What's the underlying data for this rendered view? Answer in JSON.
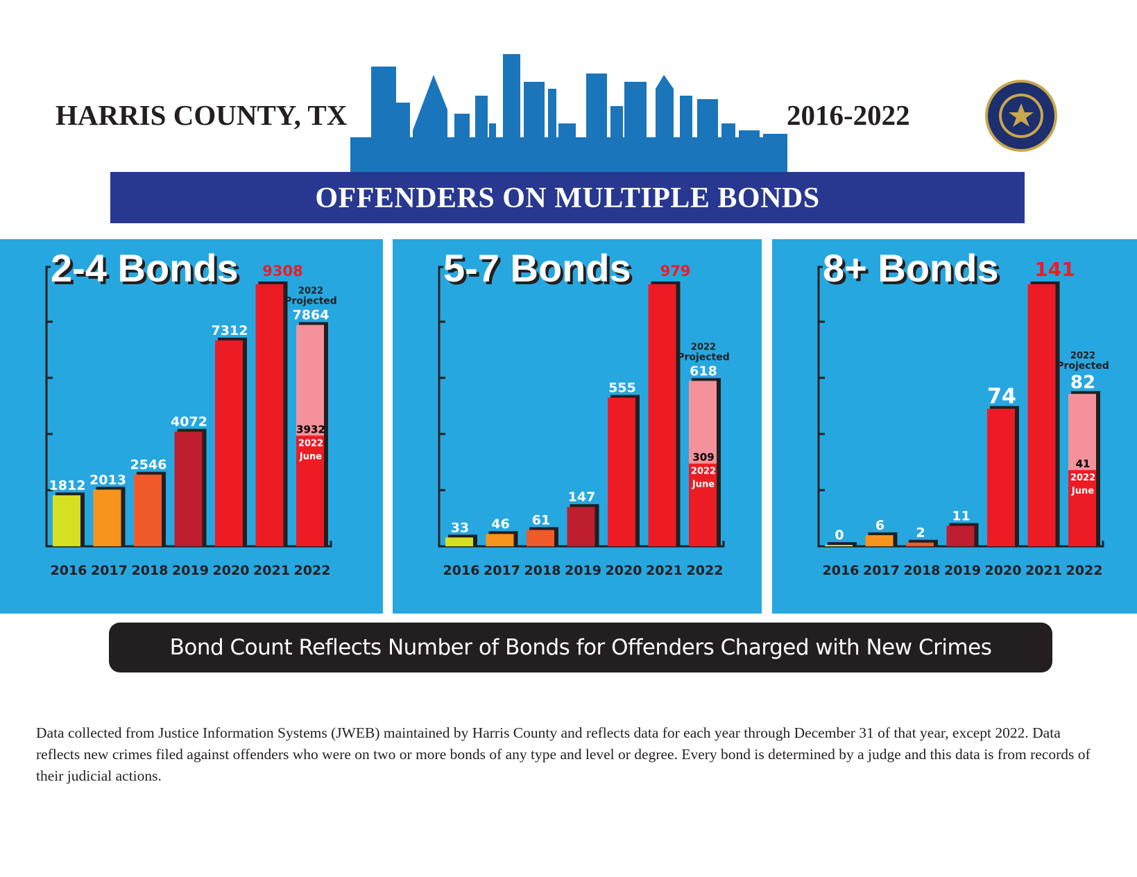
{
  "header": {
    "location": "HARRIS COUNTY, TX",
    "years": "2016-2022",
    "banner": "OFFENDERS ON MULTIPLE BONDS",
    "seal_text": "DISTRICT ATTORNEY HARRIS COUNTY, TEXAS"
  },
  "colors": {
    "2016": "#d7df23",
    "2017": "#f7941d",
    "2018": "#f15a29",
    "2019": "#be1e2d",
    "2020": "#ed1c24",
    "2021": "#ed1c24",
    "2022": "#ed1c24",
    "projected": "#f4919a",
    "panel": "#27a7e0",
    "banner": "#283891"
  },
  "chart_data": [
    {
      "type": "bar",
      "title": "2-4 Bonds",
      "categories": [
        "2016",
        "2017",
        "2018",
        "2019",
        "2020",
        "2021",
        "2022"
      ],
      "values": [
        1812,
        2013,
        2546,
        4072,
        7312,
        9308,
        3932
      ],
      "projected_2022": 7864,
      "projected_label": [
        "2022",
        "Projected"
      ],
      "june_label": [
        "2022",
        "June"
      ],
      "ylim": [
        0,
        9308
      ]
    },
    {
      "type": "bar",
      "title": "5-7 Bonds",
      "categories": [
        "2016",
        "2017",
        "2018",
        "2019",
        "2020",
        "2021",
        "2022"
      ],
      "values": [
        33,
        46,
        61,
        147,
        555,
        979,
        309
      ],
      "projected_2022": 618,
      "projected_label": [
        "2022",
        "Projected"
      ],
      "june_label": [
        "2022",
        "June"
      ],
      "ylim": [
        0,
        979
      ]
    },
    {
      "type": "bar",
      "title": "8+ Bonds",
      "categories": [
        "2016",
        "2017",
        "2018",
        "2019",
        "2020",
        "2021",
        "2022"
      ],
      "values": [
        0,
        6,
        2,
        11,
        74,
        141,
        41
      ],
      "projected_2022": 82,
      "projected_label": [
        "2022",
        "Projected"
      ],
      "june_label": [
        "2022",
        "June"
      ],
      "ylim": [
        0,
        141
      ]
    }
  ],
  "footer": {
    "caption": "Bond Count Reflects Number of Bonds for Offenders Charged with New Crimes",
    "note": "Data collected from Justice Information Systems (JWEB) maintained by Harris County and reflects data for each year through December 31 of that year, except 2022.  Data reflects new crimes filed against offenders who were on two or more bonds of any type and level or degree. Every bond is determined by a judge and this data is from records of their judicial actions."
  }
}
